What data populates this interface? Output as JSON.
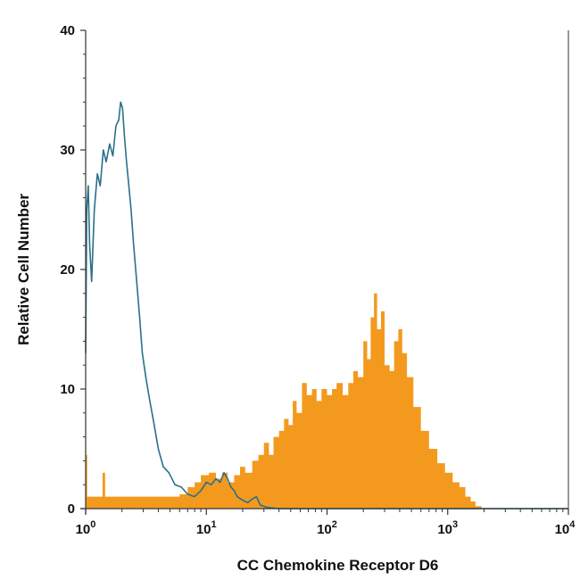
{
  "chart_data": {
    "type": "area",
    "xlabel": "CC Chemokine Receptor D6",
    "ylabel": "Relative Cell Number",
    "x_scale": "log",
    "xlim": [
      1,
      10000
    ],
    "ylim": [
      0,
      40
    ],
    "x_ticks": [
      {
        "value": 1,
        "base": "10",
        "exp": "0"
      },
      {
        "value": 10,
        "base": "10",
        "exp": "1"
      },
      {
        "value": 100,
        "base": "10",
        "exp": "2"
      },
      {
        "value": 1000,
        "base": "10",
        "exp": "3"
      },
      {
        "value": 10000,
        "base": "10",
        "exp": "4"
      }
    ],
    "y_ticks": [
      {
        "value": 0,
        "label": "0"
      },
      {
        "value": 10,
        "label": "10"
      },
      {
        "value": 20,
        "label": "20"
      },
      {
        "value": 30,
        "label": "30"
      },
      {
        "value": 40,
        "label": "40"
      }
    ],
    "grid": false,
    "series": [
      {
        "style": "filled",
        "color": "#f39a1e",
        "points": [
          [
            1.0,
            4.5
          ],
          [
            1.03,
            1.0
          ],
          [
            1.3,
            1.0
          ],
          [
            1.38,
            3.0
          ],
          [
            1.45,
            1.0
          ],
          [
            2.0,
            1.0
          ],
          [
            3.0,
            1.0
          ],
          [
            4.0,
            1.0
          ],
          [
            5.0,
            1.0
          ],
          [
            6.0,
            1.2
          ],
          [
            7.0,
            1.8
          ],
          [
            8.0,
            2.2
          ],
          [
            9.0,
            2.8
          ],
          [
            10.5,
            3.0
          ],
          [
            12.0,
            2.5
          ],
          [
            13.5,
            3.0
          ],
          [
            15.0,
            2.2
          ],
          [
            17.0,
            2.8
          ],
          [
            19.0,
            3.5
          ],
          [
            21.0,
            3.0
          ],
          [
            24.0,
            4.0
          ],
          [
            27.0,
            4.5
          ],
          [
            30.0,
            5.5
          ],
          [
            33.0,
            4.5
          ],
          [
            36.0,
            6.0
          ],
          [
            40.0,
            6.5
          ],
          [
            44.0,
            7.5
          ],
          [
            48.0,
            7.0
          ],
          [
            52.0,
            9.0
          ],
          [
            56.0,
            8.0
          ],
          [
            62.0,
            10.5
          ],
          [
            68.0,
            9.5
          ],
          [
            75.0,
            10.0
          ],
          [
            82.0,
            9.0
          ],
          [
            90.0,
            10.0
          ],
          [
            100.0,
            9.5
          ],
          [
            110.0,
            10.0
          ],
          [
            120.0,
            10.5
          ],
          [
            135.0,
            9.5
          ],
          [
            150.0,
            10.5
          ],
          [
            165.0,
            11.5
          ],
          [
            180.0,
            11.0
          ],
          [
            200.0,
            14.0
          ],
          [
            215.0,
            12.5
          ],
          [
            230.0,
            16.0
          ],
          [
            245.0,
            18.0
          ],
          [
            260.0,
            15.0
          ],
          [
            280.0,
            16.5
          ],
          [
            300.0,
            12.0
          ],
          [
            330.0,
            11.5
          ],
          [
            360.0,
            14.0
          ],
          [
            390.0,
            15.0
          ],
          [
            420.0,
            13.0
          ],
          [
            460.0,
            11.0
          ],
          [
            520.0,
            8.5
          ],
          [
            600.0,
            6.5
          ],
          [
            700.0,
            5.0
          ],
          [
            820.0,
            3.8
          ],
          [
            950.0,
            3.0
          ],
          [
            1100.0,
            2.2
          ],
          [
            1250.0,
            1.8
          ],
          [
            1400.0,
            1.0
          ],
          [
            1550.0,
            0.6
          ],
          [
            1700.0,
            0.2
          ],
          [
            1900.0,
            0.0
          ]
        ]
      },
      {
        "style": "outline",
        "color": "#2b6f8a",
        "points": [
          [
            1.0,
            13.0
          ],
          [
            1.02,
            25.0
          ],
          [
            1.05,
            27.0
          ],
          [
            1.08,
            22.0
          ],
          [
            1.12,
            19.0
          ],
          [
            1.18,
            25.0
          ],
          [
            1.25,
            28.0
          ],
          [
            1.32,
            27.0
          ],
          [
            1.4,
            30.0
          ],
          [
            1.48,
            29.0
          ],
          [
            1.58,
            30.5
          ],
          [
            1.68,
            29.5
          ],
          [
            1.78,
            32.0
          ],
          [
            1.88,
            32.5
          ],
          [
            1.95,
            34.0
          ],
          [
            2.02,
            33.5
          ],
          [
            2.1,
            31.0
          ],
          [
            2.18,
            29.0
          ],
          [
            2.28,
            27.0
          ],
          [
            2.38,
            25.0
          ],
          [
            2.5,
            22.0
          ],
          [
            2.65,
            19.0
          ],
          [
            2.8,
            16.0
          ],
          [
            2.95,
            13.0
          ],
          [
            3.15,
            11.0
          ],
          [
            3.4,
            9.0
          ],
          [
            3.7,
            7.0
          ],
          [
            4.0,
            5.0
          ],
          [
            4.4,
            3.5
          ],
          [
            4.9,
            3.0
          ],
          [
            5.5,
            2.0
          ],
          [
            6.2,
            1.8
          ],
          [
            7.0,
            1.2
          ],
          [
            8.0,
            1.0
          ],
          [
            9.0,
            1.5
          ],
          [
            10.0,
            2.2
          ],
          [
            11.0,
            2.0
          ],
          [
            12.0,
            2.5
          ],
          [
            13.0,
            2.2
          ],
          [
            14.0,
            3.0
          ],
          [
            15.0,
            2.5
          ],
          [
            16.0,
            1.8
          ],
          [
            17.0,
            1.5
          ],
          [
            18.0,
            1.0
          ],
          [
            20.0,
            0.7
          ],
          [
            22.0,
            0.5
          ],
          [
            24.0,
            0.8
          ],
          [
            26.0,
            1.0
          ],
          [
            28.0,
            0.3
          ],
          [
            32.0,
            0.1
          ],
          [
            40.0,
            0.0
          ],
          [
            100.0,
            0.0
          ],
          [
            1000.0,
            0.0
          ],
          [
            10000.0,
            0.0
          ]
        ]
      }
    ]
  }
}
